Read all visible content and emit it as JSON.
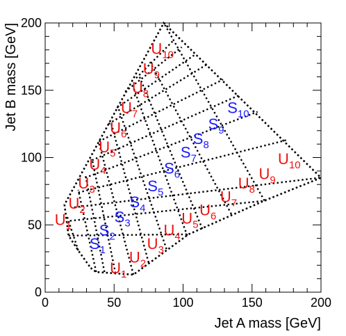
{
  "chart_data": {
    "type": "scatter",
    "title": "",
    "xlabel": "Jet A mass [GeV]",
    "ylabel": "Jet B mass [GeV]",
    "xlim": [
      0,
      200
    ],
    "ylim": [
      0,
      200
    ],
    "x_ticks": [
      "0",
      "50",
      "100",
      "150",
      "200"
    ],
    "y_ticks": [
      "0",
      "50",
      "100",
      "150",
      "200"
    ],
    "grid": false,
    "colors": {
      "signal": "#1a1aff",
      "control": "#ee1111",
      "boundary": "#000000"
    },
    "boundary": [
      [
        33,
        18
      ],
      [
        37,
        15
      ],
      [
        64,
        13
      ],
      [
        104,
        43
      ],
      [
        159,
        68
      ],
      [
        200,
        85
      ],
      [
        86,
        200
      ],
      [
        14,
        65
      ],
      [
        17,
        42
      ],
      [
        24,
        31
      ],
      [
        33,
        18
      ]
    ],
    "grid_lines": [
      [
        [
          17,
          42
        ],
        [
          104,
          43
        ]
      ],
      [
        [
          18,
          53
        ],
        [
          160,
          68
        ]
      ],
      [
        [
          21,
          63
        ],
        [
          199,
          85
        ]
      ],
      [
        [
          24,
          74
        ],
        [
          175,
          113
        ]
      ],
      [
        [
          29,
          85
        ],
        [
          154,
          134
        ]
      ],
      [
        [
          34,
          98
        ],
        [
          140,
          146
        ]
      ],
      [
        [
          39,
          112
        ],
        [
          129,
          158
        ]
      ],
      [
        [
          46,
          125
        ],
        [
          117,
          169
        ]
      ],
      [
        [
          52,
          137
        ],
        [
          108,
          176
        ]
      ],
      [
        [
          58,
          149
        ],
        [
          99,
          182
        ]
      ],
      [
        [
          66,
          159
        ],
        [
          93,
          187
        ]
      ],
      [
        [
          24,
          31
        ],
        [
          16,
          56
        ]
      ],
      [
        [
          37,
          15
        ],
        [
          24,
          76
        ]
      ],
      [
        [
          43,
          15
        ],
        [
          29,
          88
        ]
      ],
      [
        [
          51,
          14
        ],
        [
          34,
          99
        ]
      ],
      [
        [
          64,
          13
        ],
        [
          39,
          111
        ]
      ],
      [
        [
          75,
          22
        ],
        [
          48,
          125
        ]
      ],
      [
        [
          88,
          32
        ],
        [
          53,
          137
        ]
      ],
      [
        [
          103,
          42
        ],
        [
          64,
          152
        ]
      ],
      [
        [
          114,
          47
        ],
        [
          68,
          161
        ]
      ],
      [
        [
          135,
          58
        ],
        [
          76,
          171
        ]
      ],
      [
        [
          159,
          68
        ],
        [
          86,
          200
        ]
      ]
    ],
    "points": [
      {
        "label": "S",
        "index": "1",
        "group": "signal",
        "x": 38,
        "y": 32
      },
      {
        "label": "S",
        "index": "2",
        "group": "signal",
        "x": 45,
        "y": 42
      },
      {
        "label": "S",
        "index": "3",
        "group": "signal",
        "x": 56,
        "y": 52
      },
      {
        "label": "S",
        "index": "4",
        "group": "signal",
        "x": 67,
        "y": 63
      },
      {
        "label": "S",
        "index": "5",
        "group": "signal",
        "x": 80,
        "y": 75
      },
      {
        "label": "S",
        "index": "6",
        "group": "signal",
        "x": 92,
        "y": 88
      },
      {
        "label": "S",
        "index": "7",
        "group": "signal",
        "x": 104,
        "y": 100
      },
      {
        "label": "S",
        "index": "8",
        "group": "signal",
        "x": 113,
        "y": 110
      },
      {
        "label": "S",
        "index": "9",
        "group": "signal",
        "x": 124,
        "y": 121
      },
      {
        "label": "S",
        "index": "10",
        "group": "signal",
        "x": 140,
        "y": 133
      },
      {
        "label": "U",
        "index": "1",
        "group": "control",
        "x": 53,
        "y": 14
      },
      {
        "label": "U",
        "index": "2",
        "group": "control",
        "x": 67,
        "y": 22
      },
      {
        "label": "U",
        "index": "3",
        "group": "control",
        "x": 80,
        "y": 32
      },
      {
        "label": "U",
        "index": "4",
        "group": "control",
        "x": 92,
        "y": 42
      },
      {
        "label": "U",
        "index": "5",
        "group": "control",
        "x": 105,
        "y": 51
      },
      {
        "label": "U",
        "index": "6",
        "group": "control",
        "x": 118,
        "y": 57
      },
      {
        "label": "U",
        "index": "7",
        "group": "control",
        "x": 133,
        "y": 67
      },
      {
        "label": "U",
        "index": "8",
        "group": "control",
        "x": 146,
        "y": 77
      },
      {
        "label": "U",
        "index": "9",
        "group": "control",
        "x": 161,
        "y": 84
      },
      {
        "label": "U",
        "index": "10",
        "group": "control",
        "x": 177,
        "y": 95
      },
      {
        "label": "U",
        "index": "1",
        "group": "control",
        "x": 13,
        "y": 50
      },
      {
        "label": "U",
        "index": "2",
        "group": "control",
        "x": 23,
        "y": 62
      },
      {
        "label": "U",
        "index": "3",
        "group": "control",
        "x": 30,
        "y": 77
      },
      {
        "label": "U",
        "index": "4",
        "group": "control",
        "x": 38,
        "y": 91
      },
      {
        "label": "U",
        "index": "5",
        "group": "control",
        "x": 45,
        "y": 104
      },
      {
        "label": "U",
        "index": "6",
        "group": "control",
        "x": 53,
        "y": 118
      },
      {
        "label": "U",
        "index": "7",
        "group": "control",
        "x": 61,
        "y": 133
      },
      {
        "label": "U",
        "index": "8",
        "group": "control",
        "x": 69,
        "y": 148
      },
      {
        "label": "U",
        "index": "9",
        "group": "control",
        "x": 77,
        "y": 162
      },
      {
        "label": "U",
        "index": "10",
        "group": "control",
        "x": 85,
        "y": 177
      }
    ]
  }
}
